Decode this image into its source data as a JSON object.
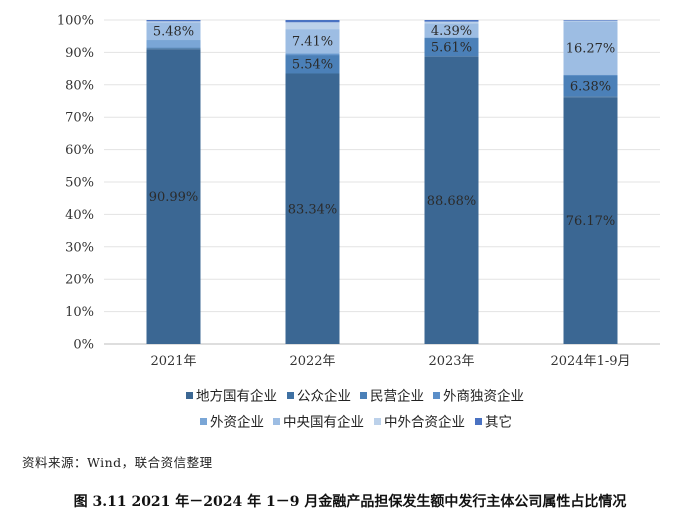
{
  "chart_data": {
    "type": "bar",
    "stacked": true,
    "categories": [
      "2021年",
      "2022年",
      "2023年",
      "2024年1-9月"
    ],
    "y_ticks": [
      "0%",
      "10%",
      "20%",
      "30%",
      "40%",
      "50%",
      "60%",
      "70%",
      "80%",
      "90%",
      "100%"
    ],
    "ylim": [
      0,
      100
    ],
    "legend_position": "bottom",
    "series": [
      {
        "name": "地方国有企业",
        "color": "#3b6793",
        "values": [
          90.99,
          83.34,
          88.68,
          76.17
        ]
      },
      {
        "name": "公众企业",
        "color": "#3f71a3",
        "values": [
          0.3,
          0.3,
          0.2,
          0.3
        ]
      },
      {
        "name": "民营企业",
        "color": "#4b80b8",
        "values": [
          0.2,
          5.54,
          5.61,
          6.38
        ]
      },
      {
        "name": "外商独资企业",
        "color": "#5b8fc9",
        "values": [
          0.0,
          0.3,
          0.0,
          0.2
        ]
      },
      {
        "name": "外资企业",
        "color": "#7aa6d6",
        "values": [
          2.33,
          0.3,
          0.12,
          0.2
        ]
      },
      {
        "name": "中央国有企业",
        "color": "#9dbde3",
        "values": [
          5.48,
          7.41,
          4.39,
          16.27
        ]
      },
      {
        "name": "中外合资企业",
        "color": "#bcd1ea",
        "values": [
          0.3,
          2.11,
          0.5,
          0.3
        ]
      },
      {
        "name": "其它",
        "color": "#4a72c2",
        "values": [
          0.4,
          0.7,
          0.5,
          0.18
        ]
      }
    ],
    "data_labels": [
      {
        "category": 0,
        "series": 0,
        "text": "90.99%"
      },
      {
        "category": 0,
        "series": 5,
        "text": "5.48%"
      },
      {
        "category": 1,
        "series": 0,
        "text": "83.34%"
      },
      {
        "category": 1,
        "series": 2,
        "text": "5.54%"
      },
      {
        "category": 1,
        "series": 5,
        "text": "7.41%"
      },
      {
        "category": 2,
        "series": 0,
        "text": "88.68%"
      },
      {
        "category": 2,
        "series": 2,
        "text": "5.61%"
      },
      {
        "category": 2,
        "series": 5,
        "text": "4.39%"
      },
      {
        "category": 3,
        "series": 0,
        "text": "76.17%"
      },
      {
        "category": 3,
        "series": 2,
        "text": "6.38%"
      },
      {
        "category": 3,
        "series": 5,
        "text": "16.27%"
      }
    ]
  },
  "source_text": "资料来源：Wind，联合资信整理",
  "caption": "图 3.11    2021 年－2024 年 1－9 月金融产品担保发生额中发行主体公司属性占比情况"
}
